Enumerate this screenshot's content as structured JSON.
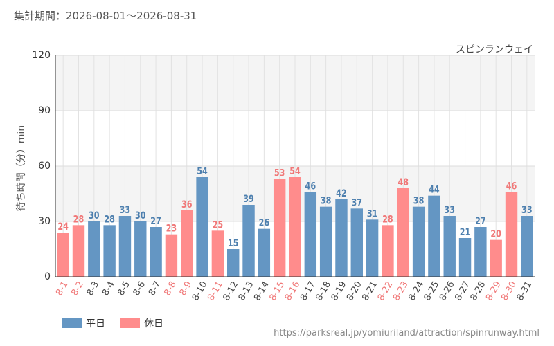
{
  "header": {
    "period_label": "集計期間：2026-08-01～2026-08-31"
  },
  "source_url": "https://parksreal.jp/yomiuriland/attraction/spinrunway.html",
  "chart_data": {
    "type": "bar",
    "title": "スピンランウェイ",
    "ylabel": "待ち時間（分）min",
    "xlabel": "",
    "ylim": [
      0,
      120
    ],
    "yticks": [
      0,
      30,
      60,
      90,
      120
    ],
    "grid": true,
    "legend_position": "bottom-left",
    "colors": {
      "weekday": "#6496c3",
      "holiday": "#ff8c8c",
      "weekday_label": "#4d7fae",
      "holiday_label": "#f07878",
      "axis_label": "#444444"
    },
    "legend": [
      {
        "key": "weekday",
        "label": "平日"
      },
      {
        "key": "holiday",
        "label": "休日"
      }
    ],
    "categories": [
      "8-1",
      "8-2",
      "8-3",
      "8-4",
      "8-5",
      "8-6",
      "8-7",
      "8-8",
      "8-9",
      "8-10",
      "8-11",
      "8-12",
      "8-13",
      "8-14",
      "8-15",
      "8-16",
      "8-17",
      "8-18",
      "8-19",
      "8-20",
      "8-21",
      "8-22",
      "8-23",
      "8-24",
      "8-25",
      "8-26",
      "8-27",
      "8-28",
      "8-29",
      "8-30",
      "8-31"
    ],
    "values": [
      24,
      28,
      30,
      28,
      33,
      30,
      27,
      23,
      36,
      54,
      25,
      15,
      39,
      26,
      53,
      54,
      46,
      38,
      42,
      37,
      31,
      28,
      48,
      38,
      44,
      33,
      21,
      27,
      20,
      46,
      33
    ],
    "day_type": [
      "holiday",
      "holiday",
      "weekday",
      "weekday",
      "weekday",
      "weekday",
      "weekday",
      "holiday",
      "holiday",
      "weekday",
      "holiday",
      "weekday",
      "weekday",
      "weekday",
      "holiday",
      "holiday",
      "weekday",
      "weekday",
      "weekday",
      "weekday",
      "weekday",
      "holiday",
      "holiday",
      "weekday",
      "weekday",
      "weekday",
      "weekday",
      "weekday",
      "holiday",
      "holiday",
      "weekday"
    ]
  }
}
